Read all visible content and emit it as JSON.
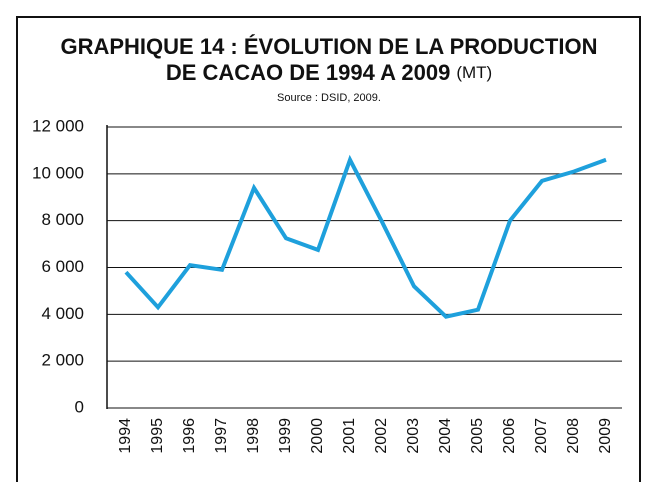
{
  "chart_data": {
    "type": "line",
    "title_lines": [
      "GRAPHIQUE 14 : ÉVOLUTION DE LA PRODUCTION",
      "DE CACAO DE 1994 A 2009"
    ],
    "unit": "(MT)",
    "source": "Source : DSID, 2009.",
    "categories": [
      "1994",
      "1995",
      "1996",
      "1997",
      "1998",
      "1999",
      "2000",
      "2001",
      "2002",
      "2003",
      "2004",
      "2005",
      "2006",
      "2007",
      "2008",
      "2009"
    ],
    "values": [
      5800,
      4300,
      6100,
      5900,
      9400,
      7250,
      6750,
      10600,
      7950,
      5200,
      3900,
      4200,
      8000,
      9700,
      10100,
      10600
    ],
    "color": "#1ea0dc",
    "ylim": [
      0,
      12000
    ],
    "yticks": [
      0,
      {
        "value": 2000,
        "label": "2 000"
      },
      {
        "value": 4000,
        "label": "4 000"
      },
      {
        "value": 6000,
        "label": "6 000"
      },
      {
        "value": 8000,
        "label": "8 000"
      },
      {
        "value": 10000,
        "label": "10 000"
      },
      {
        "value": 12000,
        "label": "12 000"
      }
    ],
    "grid": true
  }
}
